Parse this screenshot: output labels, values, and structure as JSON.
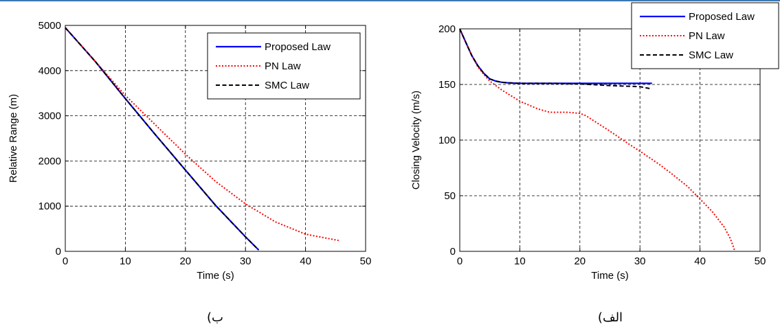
{
  "colors": {
    "proposed": "#0000ff",
    "pn": "#ff0000",
    "smc": "#000000",
    "accent_rule": "#3c78b4"
  },
  "chart_data": [
    {
      "id": "left",
      "type": "line",
      "caption": "ب)",
      "xlabel": "Time (s)",
      "ylabel": "Relative Range (m)",
      "xlim": [
        0,
        50
      ],
      "ylim": [
        0,
        5000
      ],
      "xticks": [
        0,
        10,
        20,
        30,
        40,
        50
      ],
      "yticks": [
        0,
        1000,
        2000,
        3000,
        4000,
        5000
      ],
      "grid": true,
      "legend": "top-right",
      "series": [
        {
          "name": "Proposed Law",
          "style": "solid",
          "color": "#0000ff",
          "x": [
            0,
            5,
            10,
            15,
            20,
            25,
            30,
            32.2
          ],
          "y": [
            4950,
            4200,
            3380,
            2580,
            1800,
            1020,
            320,
            30
          ]
        },
        {
          "name": "PN Law",
          "style": "dotted",
          "color": "#ff0000",
          "x": [
            0,
            5,
            10,
            15,
            20,
            25,
            30,
            35,
            40,
            45.5
          ],
          "y": [
            4950,
            4200,
            3450,
            2800,
            2150,
            1550,
            1050,
            650,
            380,
            240
          ]
        },
        {
          "name": "SMC Law",
          "style": "dashed",
          "color": "#000000",
          "x": [
            0,
            5,
            10,
            15,
            20,
            25,
            30,
            32.2
          ],
          "y": [
            4950,
            4200,
            3380,
            2580,
            1800,
            1020,
            320,
            30
          ]
        }
      ]
    },
    {
      "id": "right",
      "type": "line",
      "caption": "الف)",
      "xlabel": "Time (s)",
      "ylabel": "Closing Velocity (m/s)",
      "xlim": [
        0,
        50
      ],
      "ylim": [
        0,
        200
      ],
      "xticks": [
        0,
        10,
        20,
        30,
        40,
        50
      ],
      "yticks": [
        0,
        50,
        100,
        150,
        200
      ],
      "grid": true,
      "legend": "top-right",
      "series": [
        {
          "name": "Proposed Law",
          "style": "solid",
          "color": "#0000ff",
          "x": [
            0,
            1,
            2,
            3,
            4,
            5,
            6,
            7,
            8,
            10,
            15,
            20,
            25,
            30,
            32
          ],
          "y": [
            200,
            188,
            176,
            167,
            160,
            155,
            153,
            152,
            151.5,
            151,
            151,
            151,
            151,
            151,
            151
          ]
        },
        {
          "name": "PN Law",
          "style": "dotted",
          "color": "#ff0000",
          "x": [
            0,
            1,
            2,
            3,
            4,
            5,
            7,
            10,
            13,
            15,
            18,
            20,
            21,
            23,
            25,
            28,
            30,
            33,
            35,
            38,
            40,
            42,
            43,
            44,
            45,
            45.5,
            45.8
          ],
          "y": [
            200,
            188,
            176,
            166,
            159,
            153,
            145,
            135,
            128,
            125,
            125,
            124,
            122,
            115,
            108,
            97,
            90,
            79,
            71,
            58,
            47,
            36,
            29,
            22,
            12,
            5,
            0
          ]
        },
        {
          "name": "SMC Law",
          "style": "dashed",
          "color": "#000000",
          "x": [
            0,
            1,
            2,
            3,
            4,
            5,
            6,
            7,
            8,
            10,
            15,
            20,
            25,
            30,
            32
          ],
          "y": [
            200,
            188,
            176,
            167,
            160,
            155,
            153,
            152,
            151.5,
            151,
            151,
            150.5,
            149,
            148,
            146
          ]
        }
      ]
    }
  ]
}
